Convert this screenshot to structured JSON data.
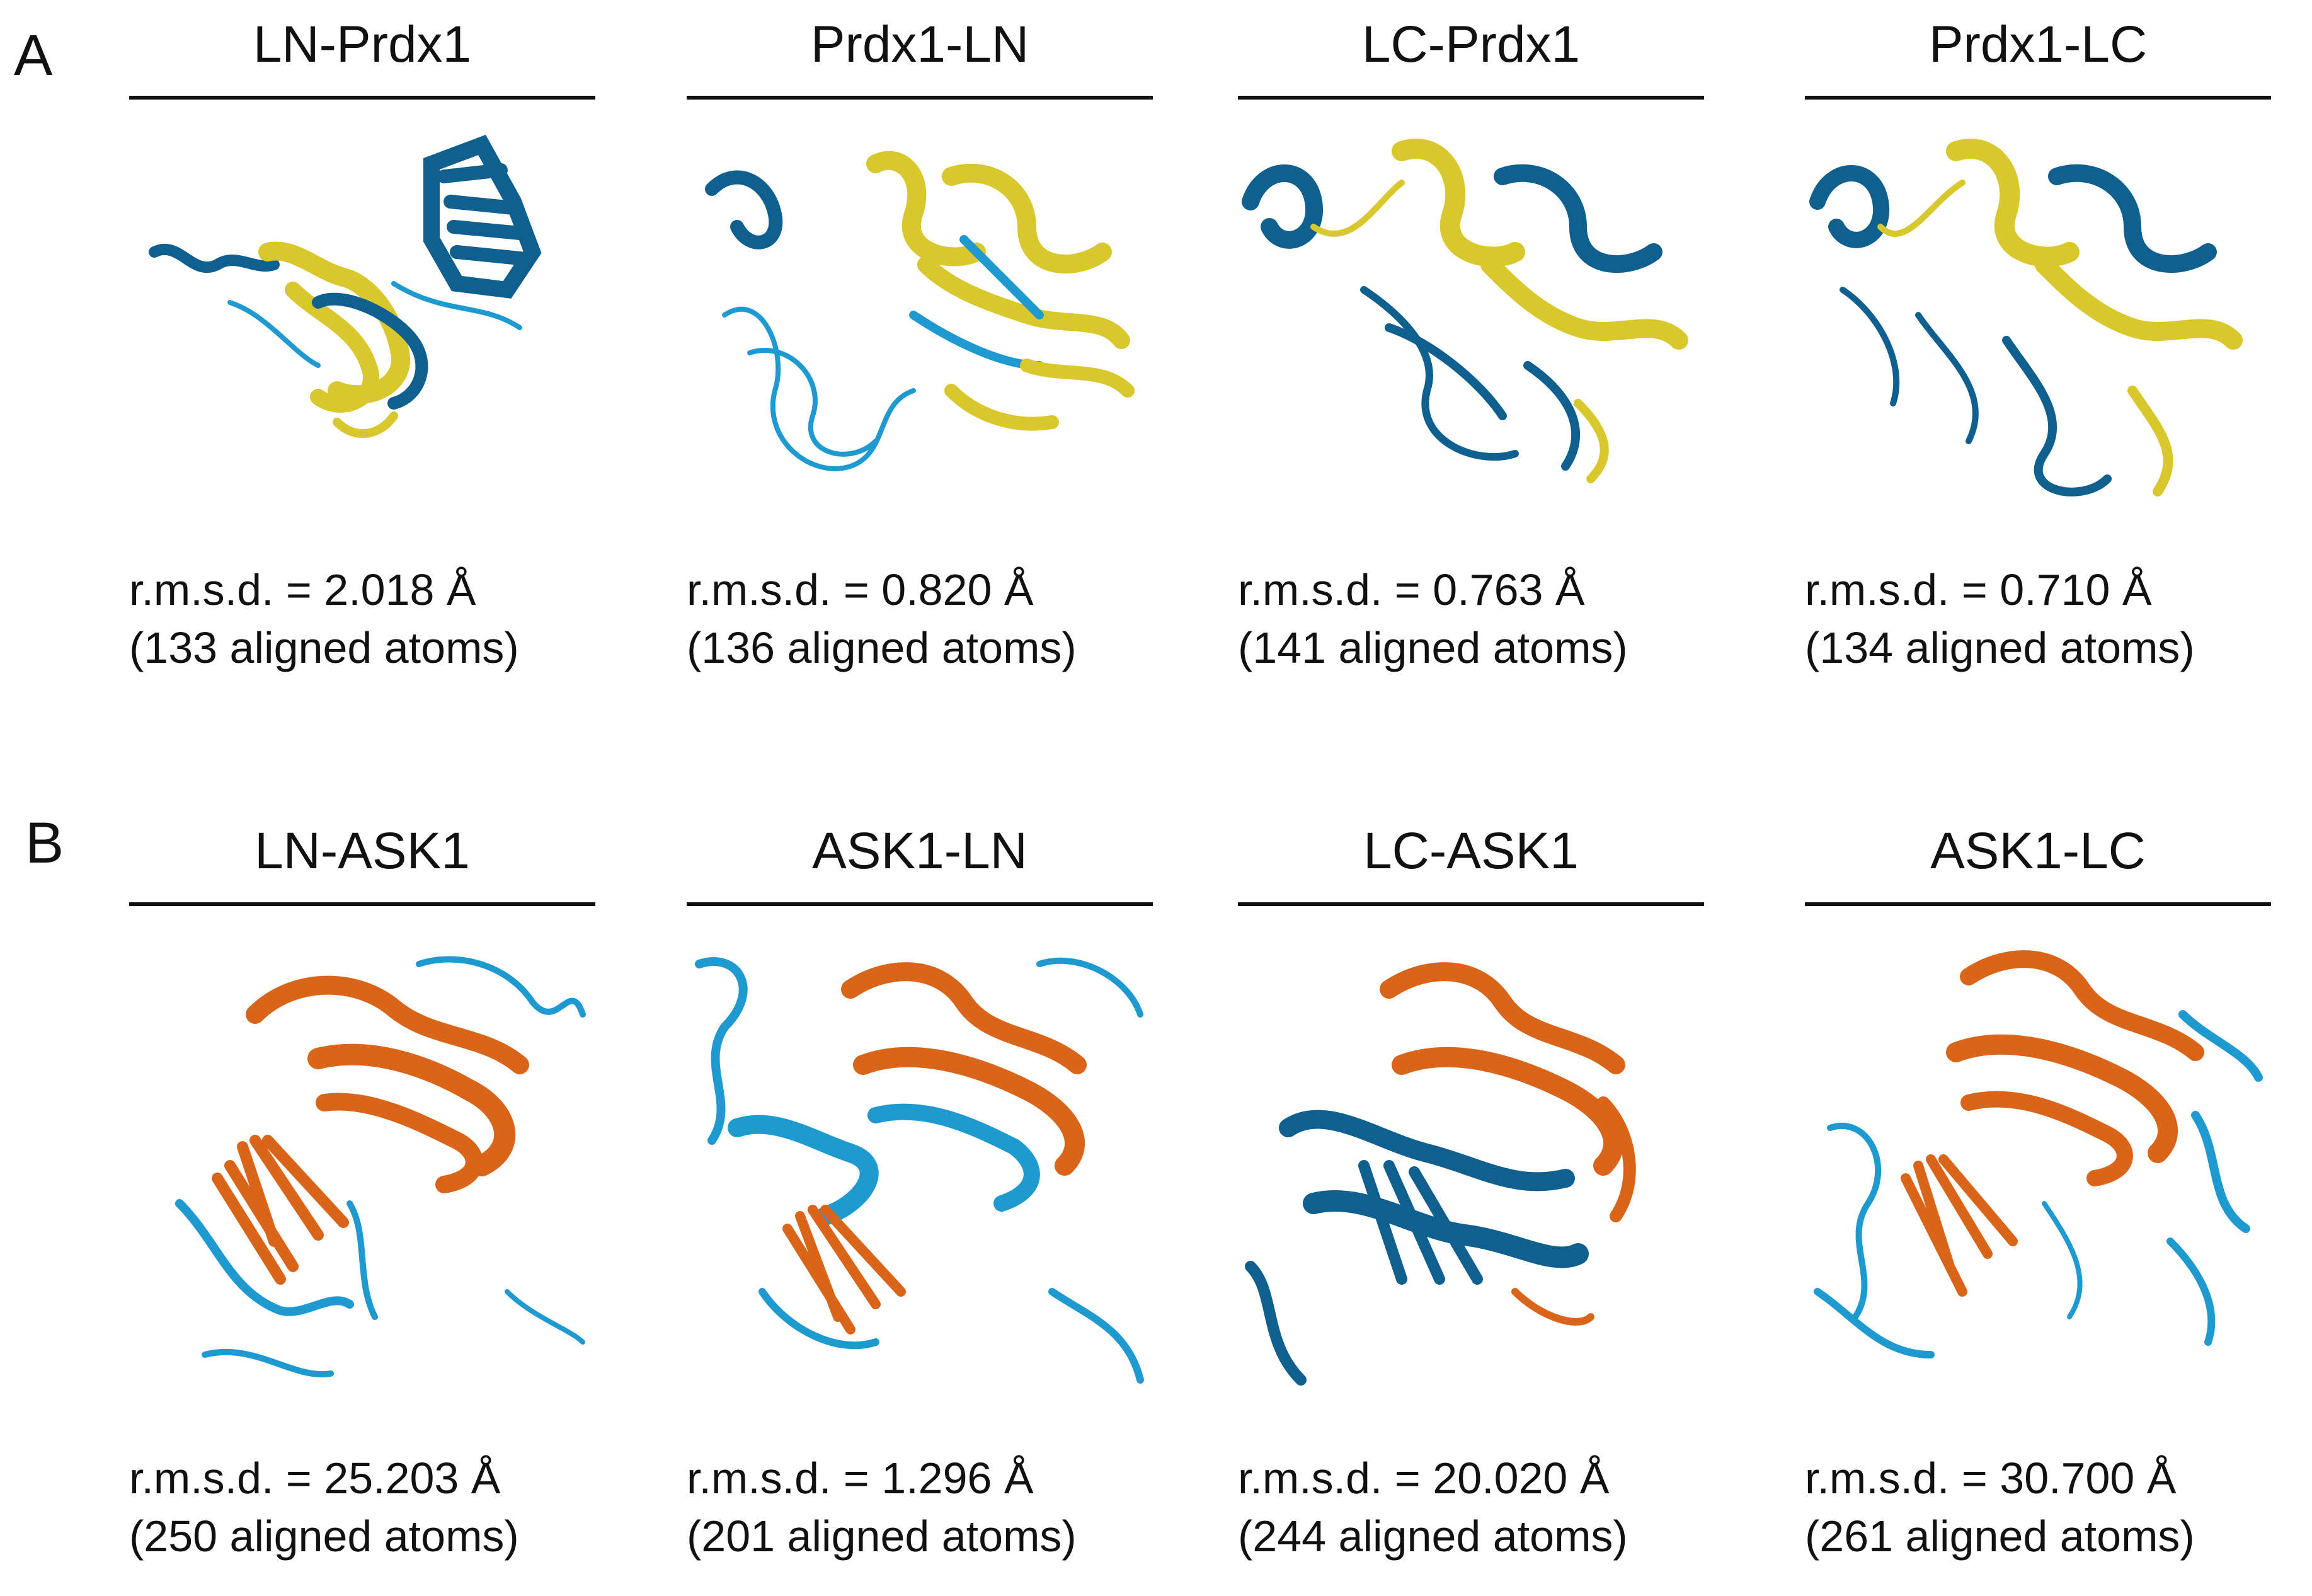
{
  "panels": {
    "a": {
      "letter": "A",
      "items": [
        {
          "title": "LN-Prdx1",
          "rmsd": "r.m.s.d. = 2.018 Å",
          "atoms": "(133 aligned atoms)"
        },
        {
          "title": "Prdx1-LN",
          "rmsd": "r.m.s.d. = 0.820 Å",
          "atoms": "(136 aligned atoms)"
        },
        {
          "title": "LC-Prdx1",
          "rmsd": "r.m.s.d. = 0.763 Å",
          "atoms": "(141 aligned atoms)"
        },
        {
          "title": "Prdx1-LC",
          "rmsd": "r.m.s.d. = 0.710 Å",
          "atoms": "(134 aligned atoms)"
        }
      ]
    },
    "b": {
      "letter": "B",
      "items": [
        {
          "title": "LN-ASK1",
          "rmsd": "r.m.s.d. = 25.203 Å",
          "atoms": "(250 aligned atoms)"
        },
        {
          "title": "ASK1-LN",
          "rmsd": "r.m.s.d. = 1.296 Å",
          "atoms": "(201 aligned atoms)"
        },
        {
          "title": "LC-ASK1",
          "rmsd": "r.m.s.d. = 20.020 Å",
          "atoms": "(244 aligned atoms)"
        },
        {
          "title": "ASK1-LC",
          "rmsd": "r.m.s.d. = 30.700 Å",
          "atoms": "(261 aligned atoms)"
        }
      ]
    }
  },
  "colors": {
    "prdx1_reference": "#d9c72e",
    "ask1_reference": "#d9651a",
    "model_dark_blue": "#0f5f8f",
    "model_light_blue": "#1f9ad1"
  }
}
